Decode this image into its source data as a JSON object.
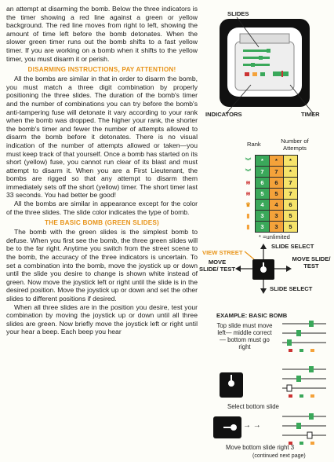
{
  "left_column": {
    "p1": "an attempt at disarming the bomb. Below the three indicators is the timer showing a red line against a green or yellow background. The red line moves from right to left, showing the amount of time left before the bomb detonates. When the slower green timer runs out the bomb shifts to a fast yellow timer. If you are working on a bomb when it shifts to the yellow timer, you must disarm it or perish.",
    "h1": "DISARMING INSTRUCTIONS, PAY ATTENTION!",
    "p2": "All the bombs are similar in that in order to disarm the bomb, you must match a three digit combination by properly positioning the three slides. The duration of the bomb's timer and the number of combinations you can try before the bomb's anti-tampering fuse will detonate it vary according to your rank when the bomb was dropped. The higher your rank, the shorter the bomb's timer and fewer the number of attempts allowed to disarm the bomb before it detonates. There is no visual indication of the number of attempts allowed or taken—you must keep track of that yourself. Once a bomb has started on its short (yellow) fuse, you cannot run clear of its blast and must attempt to disarm it. When you are a First Lieutenant, the bombs are rigged so that any attempt to disarm them immediately sets off the short (yellow) timer. The short timer last 33 seconds. You had better be good!",
    "p3": "All the bombs are similar in appearance except for the color of the three slides. The slide color indicates the type of bomb.",
    "h2": "THE BASIC BOMB (GREEN SLIDES)",
    "p4": "The bomb with the green slides is the simplest bomb to defuse. When you first see the bomb, the three green slides will be to the far right. Anytime you switch from the street scene to the bomb, the accuracy of the three indicators is uncertain. To set a combination into the bomb, move the joystick up or down until the slide you desire to change is shown white instead of green. Now move the joystick left or right until the slide is in the desired position. Move the joystick up or down and set the other slides to different positions if desired.",
    "p5": "When all three slides are in the position you desire, test your combination by moving the joystick up or down until all three slides are green. Now briefly move the joystick left or right until your hear a beep. Each beep you hear"
  },
  "diagram": {
    "slides_label": "SLIDES",
    "indicators_label": "INDICATORS",
    "timer_label": "TIMER"
  },
  "rank_table": {
    "header_rank": "Rank",
    "header_attempts": "Number of Attempts",
    "rows": [
      [
        "*",
        "*",
        "*"
      ],
      [
        "7",
        "7",
        "*"
      ],
      [
        "6",
        "6",
        "7"
      ],
      [
        "5",
        "5",
        "7"
      ],
      [
        "4",
        "4",
        "6"
      ],
      [
        "3",
        "3",
        "5"
      ],
      [
        "3",
        "3",
        "5"
      ]
    ],
    "footnote": "* =unlimited"
  },
  "joystick": {
    "view_street": "VIEW STREET",
    "slide_select_top": "SLIDE SELECT",
    "move_slide_test_left": "MOVE SLIDE/ TEST",
    "move_slide_test_right": "MOVE SLIDE/ TEST",
    "slide_select_bottom": "SLIDE SELECT"
  },
  "example": {
    "title": "EXAMPLE: BASIC BOMB",
    "note": "Top slide must move left— middle correct— bottom must go right",
    "caption1": "Select bottom slide",
    "caption2": "Move bottom slide right 3",
    "continued": "(continued next page)"
  },
  "colors": {
    "heading": "#e8941a",
    "view_street": "#e8941a",
    "green": "#3aa85a",
    "orange": "#f4a23a",
    "yellow": "#f6e36a"
  }
}
